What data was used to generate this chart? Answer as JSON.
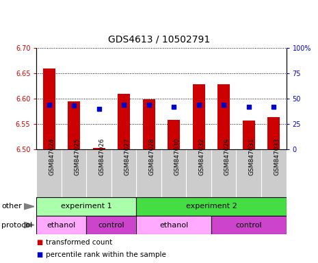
{
  "title": "GDS4613 / 10502791",
  "samples": [
    "GSM847024",
    "GSM847025",
    "GSM847026",
    "GSM847027",
    "GSM847028",
    "GSM847030",
    "GSM847032",
    "GSM847029",
    "GSM847031",
    "GSM847033"
  ],
  "bar_values": [
    6.66,
    6.595,
    6.503,
    6.61,
    6.598,
    6.558,
    6.628,
    6.628,
    6.557,
    6.563
  ],
  "bar_bottom": 6.5,
  "dot_values": [
    44,
    43,
    40,
    44,
    44,
    42,
    44,
    44,
    42,
    42
  ],
  "ylim_left": [
    6.5,
    6.7
  ],
  "ylim_right": [
    0,
    100
  ],
  "yticks_left": [
    6.5,
    6.55,
    6.6,
    6.65,
    6.7
  ],
  "yticks_right": [
    0,
    25,
    50,
    75,
    100
  ],
  "ytick_labels_right": [
    "0",
    "25",
    "50",
    "75",
    "100%"
  ],
  "bar_color": "#cc0000",
  "dot_color": "#0000cc",
  "bar_width": 0.5,
  "exp1_color": "#aaffaa",
  "exp2_color": "#44dd44",
  "ethanol_color": "#ffaaff",
  "control_color": "#cc44cc",
  "other_label": "other",
  "protocol_label": "protocol",
  "exp1_label": "experiment 1",
  "exp2_label": "experiment 2",
  "ethanol_label": "ethanol",
  "control_label": "control",
  "legend_bar_label": "transformed count",
  "legend_dot_label": "percentile rank within the sample",
  "tick_label_color_left": "#cc0000",
  "tick_label_color_right": "#0000cc",
  "xlabels_bg": "#cccccc",
  "cell_border": "#ffffff"
}
